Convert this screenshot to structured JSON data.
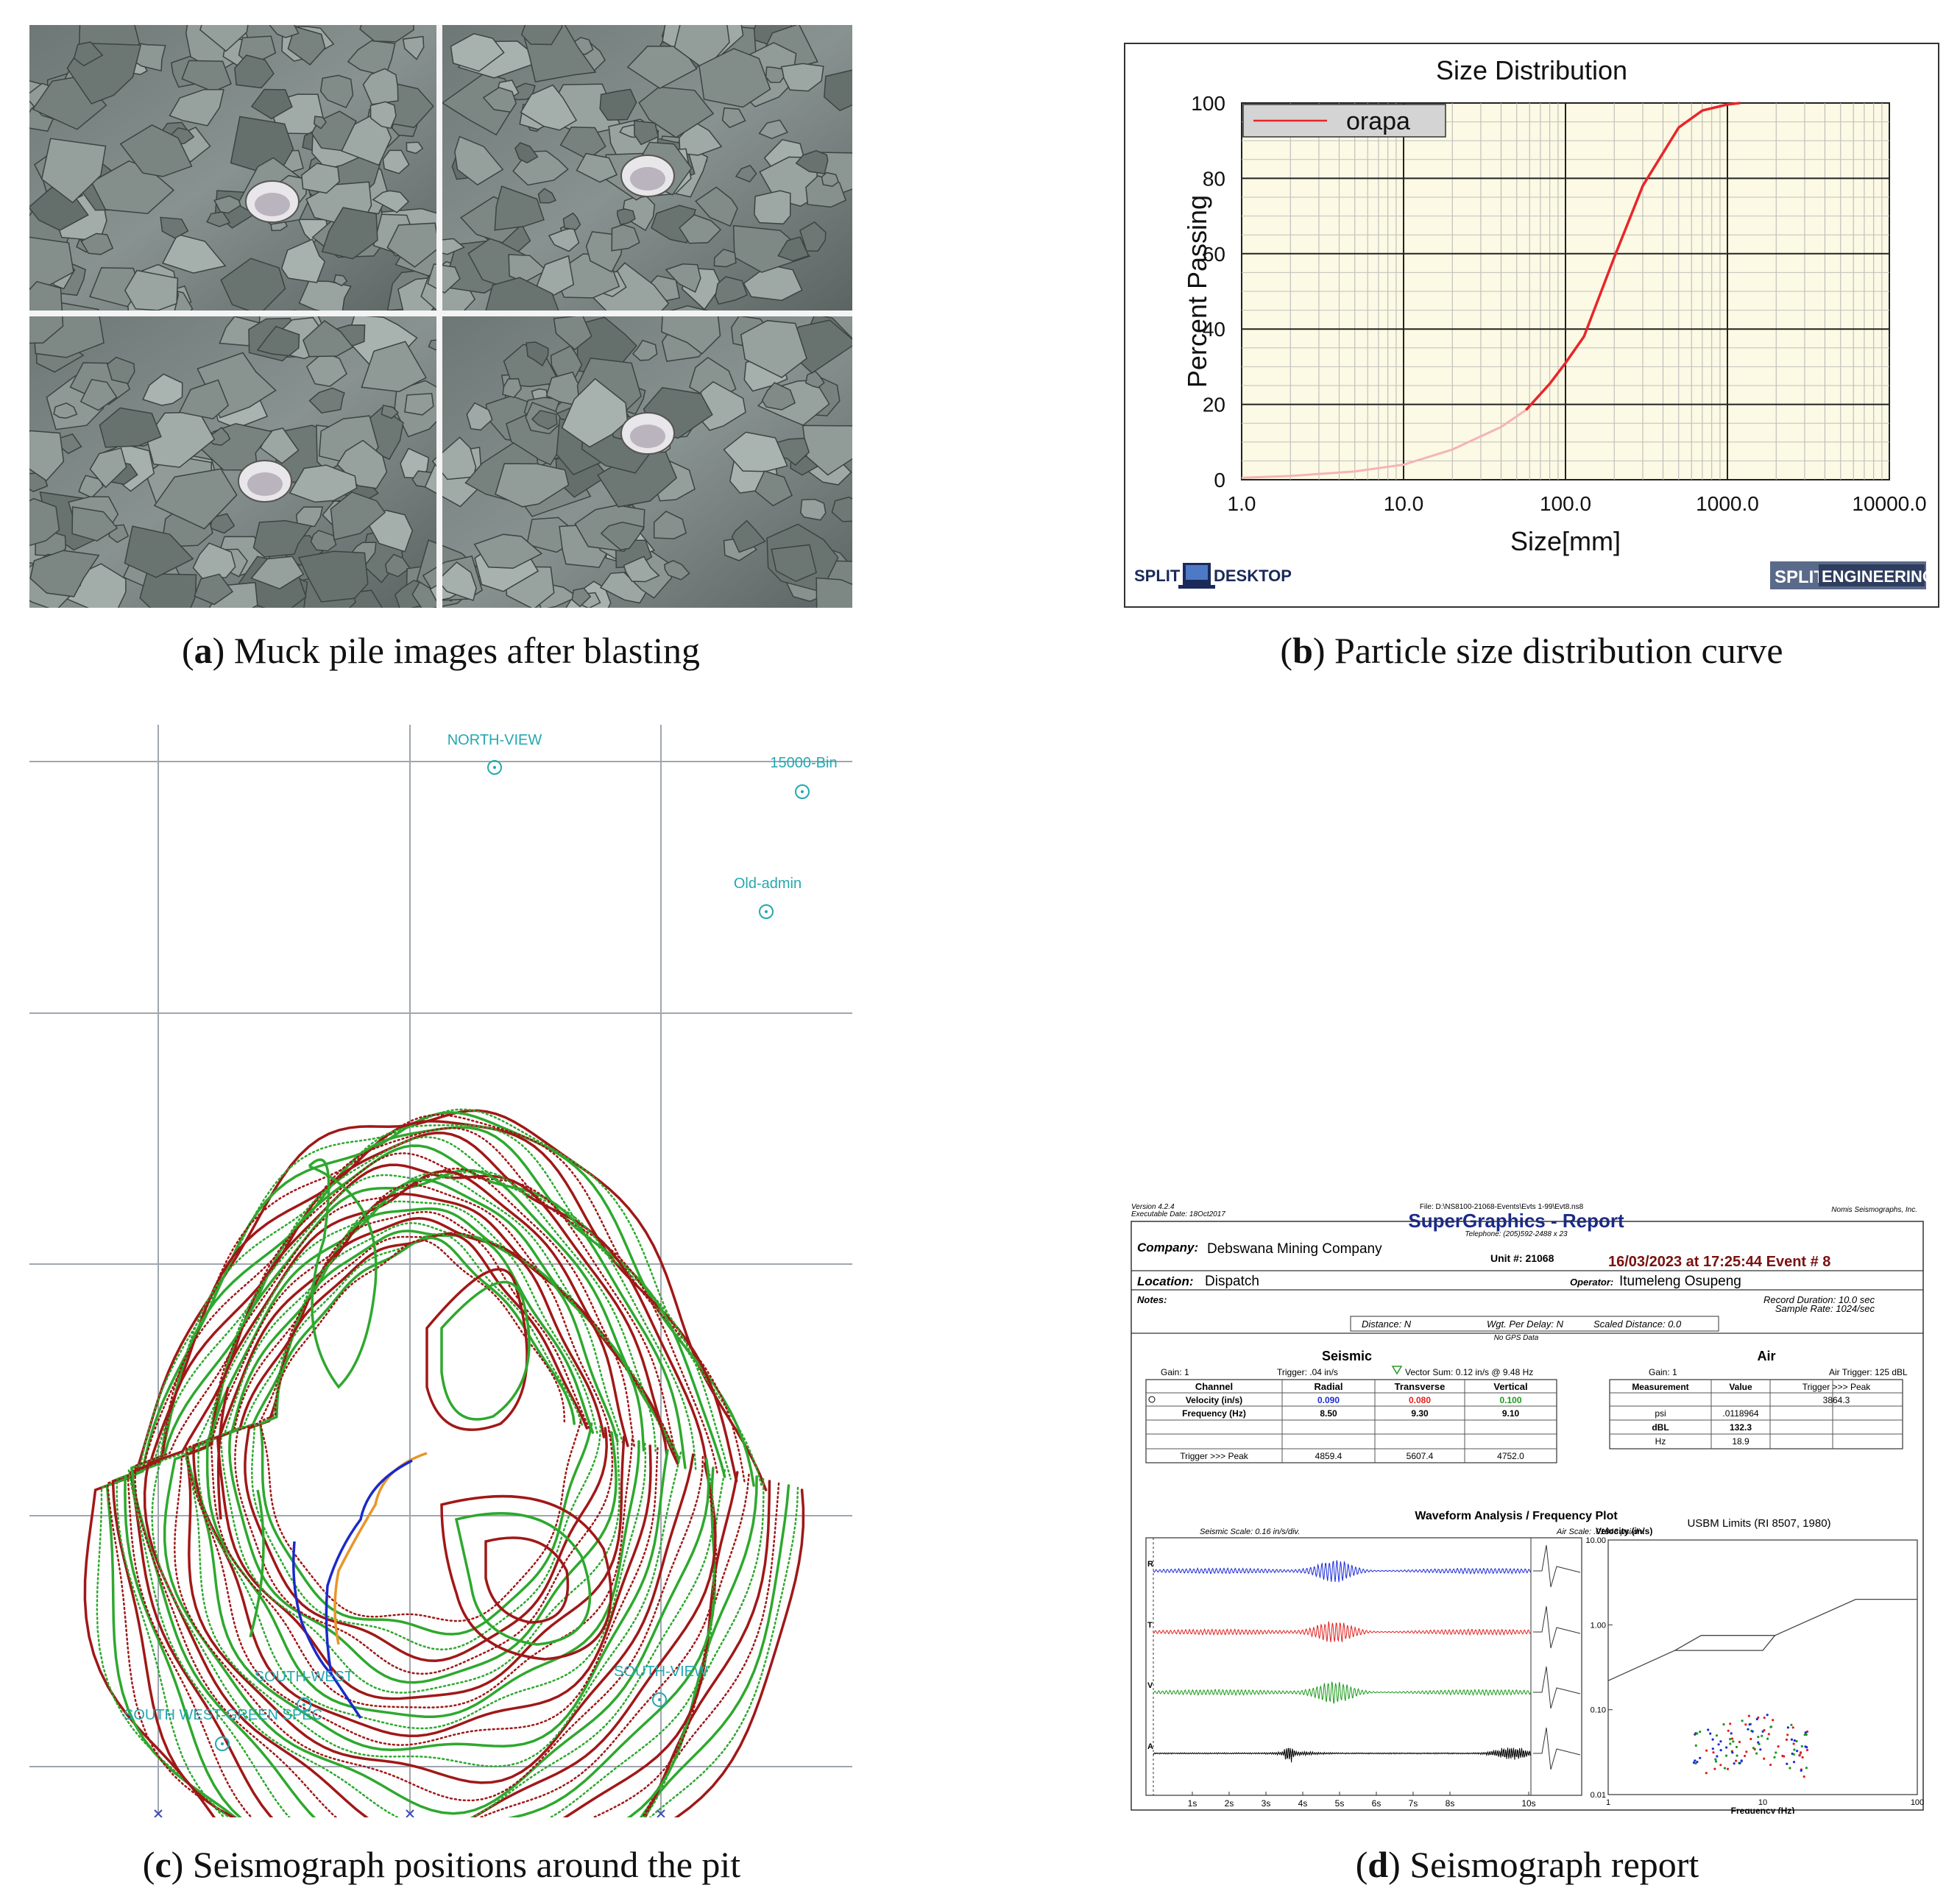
{
  "captions": {
    "a": {
      "letter": "a",
      "text": "Muck pile images after blasting"
    },
    "b": {
      "letter": "b",
      "text": "Particle size distribution curve"
    },
    "c": {
      "letter": "c",
      "text": "Seismograph positions around the pit"
    },
    "d": {
      "letter": "d",
      "text": "Seismograph report"
    }
  },
  "chart_data": {
    "type": "line",
    "title": "Size Distribution",
    "xlabel": "Size[mm]",
    "ylabel": "Percent Passing",
    "xscale": "log",
    "xlim": [
      1,
      10000
    ],
    "ylim": [
      0,
      100
    ],
    "x_ticks": [
      "1.0",
      "10.0",
      "100.0",
      "1000.0",
      "10000.0"
    ],
    "y_ticks": [
      "0",
      "20",
      "40",
      "60",
      "80",
      "100"
    ],
    "legend_position": "top-left",
    "grid": true,
    "series": [
      {
        "name": "orapa",
        "color": "#e8262a",
        "x": [
          1,
          2,
          5,
          10,
          20,
          40,
          57,
          80,
          100,
          130,
          200,
          300,
          500,
          700,
          1000,
          1200
        ],
        "y": [
          0.5,
          1.0,
          2.2,
          4.0,
          8.0,
          14.0,
          18.5,
          25.5,
          31,
          38,
          59,
          78,
          93.5,
          98,
          99.6,
          100
        ]
      }
    ]
  },
  "split_logos": {
    "left_a": "SPLIT",
    "left_b": "DESKTOP",
    "right_a": "SPLIT",
    "right_b": "ENGINEERING"
  },
  "map": {
    "stations": [
      {
        "label": "NORTH-VIEW"
      },
      {
        "label": "15000-Bin"
      },
      {
        "label": "Old-admin"
      },
      {
        "label": "SOUTH-WEST"
      },
      {
        "label": "SOUTH-VIEW"
      },
      {
        "label": "SOUTH WEST-GREEN SPEC"
      }
    ]
  },
  "report": {
    "version": "Version 4.2.4",
    "exec_date": "Executable Date: 18Oct2017",
    "file": "File: D:\\NS8100-21068-Events\\Evts 1-99\\Evt8.ns8",
    "vendor": "Nomis Seismographs, Inc.",
    "title": "SuperGraphics - Report",
    "telephone": "Telephone: (205)592-2488 x 23",
    "company_label": "Company:",
    "company": "Debswana Mining Company",
    "unit": "Unit #: 21068",
    "event": "16/03/2023 at 17:25:44 Event # 8",
    "location_label": "Location:",
    "location": "Dispatch",
    "operator_label": "Operator:",
    "operator": "Itumeleng Osupeng",
    "notes_label": "Notes:",
    "record_duration": "Record Duration: 10.0 sec",
    "sample_rate": "Sample Rate: 1024/sec",
    "distance": "Distance: N",
    "wgt": "Wgt. Per Delay: N",
    "scaled": "Scaled Distance: 0.0",
    "gps": "No GPS Data",
    "seismic_title": "Seismic",
    "air_title": "Air",
    "seis_gain": "Gain: 1",
    "seis_trigger": "Trigger: .04  in/s",
    "vector_sum": "Vector Sum: 0.12  in/s @ 9.48 Hz",
    "air_gain": "Gain: 1",
    "air_trigger": "Air Trigger: 125 dBL",
    "seis_headers": [
      "Channel",
      "Radial",
      "Transverse",
      "Vertical"
    ],
    "seis_rows": [
      [
        "Velocity (in/s)",
        "0.090",
        "0.080",
        "0.100"
      ],
      [
        "Frequency (Hz)",
        "8.50",
        "9.30",
        "9.10"
      ],
      [
        "",
        "",
        "",
        ""
      ],
      [
        "",
        "",
        "",
        ""
      ],
      [
        "Trigger >>> Peak",
        "4859.4",
        "5607.4",
        "4752.0"
      ]
    ],
    "air_headers": [
      "Measurement",
      "Value",
      "Trigger >>> Peak"
    ],
    "air_rows": [
      [
        "",
        "",
        "3864.3"
      ],
      [
        "psi",
        ".0118964",
        ""
      ],
      [
        "dBL",
        "132.3",
        ""
      ],
      [
        "Hz",
        "18.9",
        ""
      ]
    ],
    "waveform_title": "Waveform Analysis / Frequency Plot",
    "seismic_scale": "Seismic Scale: 0.16 in/s/div.",
    "air_scale": "Air Scale: .01843 psi/div.",
    "usbm": "USBM Limits (RI 8507, 1980)",
    "vel_label": "Velocity (in/s)",
    "freq_label": "Frequency (Hz)",
    "channels": [
      "R",
      "T",
      "V",
      "A"
    ],
    "time_ticks": [
      "1s",
      "2s",
      "3s",
      "4s",
      "5s",
      "6s",
      "7s",
      "8s",
      "10s"
    ],
    "fy_ticks": [
      "10.00",
      "1.00",
      "0.10",
      "0.01"
    ],
    "fx_ticks": [
      "1",
      "10",
      "100"
    ]
  }
}
